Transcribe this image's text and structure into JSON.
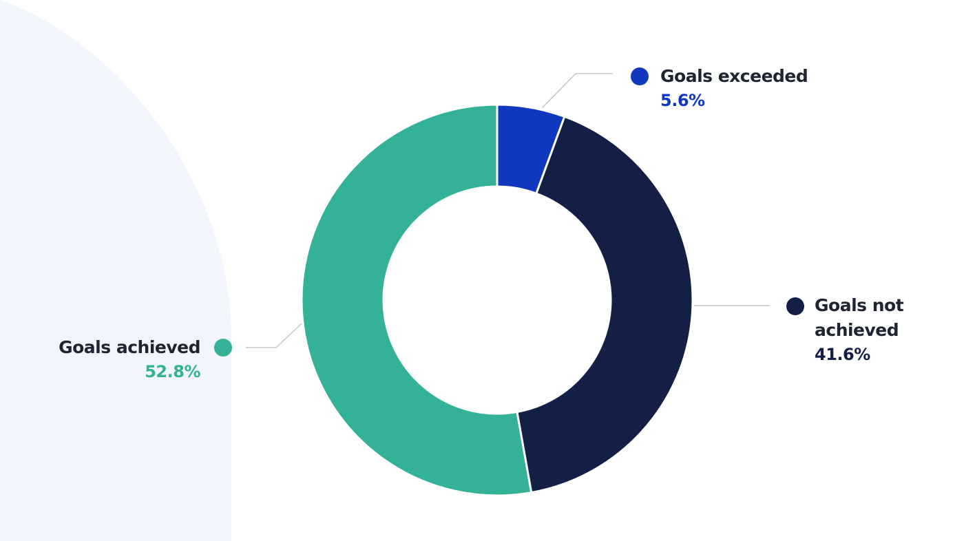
{
  "chart_data": {
    "type": "pie",
    "style": "donut",
    "title": "",
    "start_angle_deg": 0,
    "direction": "clockwise",
    "categories": [
      "Goals exceeded",
      "Goals not achieved",
      "Goals achieved"
    ],
    "values": [
      5.6,
      41.6,
      52.8
    ],
    "value_labels": [
      "5.6%",
      "41.6%",
      "52.8%"
    ],
    "colors": [
      "#1038be",
      "#131f44",
      "#34b297"
    ],
    "label_text_color": "#1f2433",
    "legend": "none",
    "grid": false
  },
  "background": {
    "panel_color": "#f2f5fb"
  },
  "label_lines": [
    {
      "name_lines": [
        "Goals exceeded"
      ]
    },
    {
      "name_lines": [
        "Goals not",
        "achieved"
      ]
    },
    {
      "name_lines": [
        "Goals achieved"
      ]
    }
  ]
}
